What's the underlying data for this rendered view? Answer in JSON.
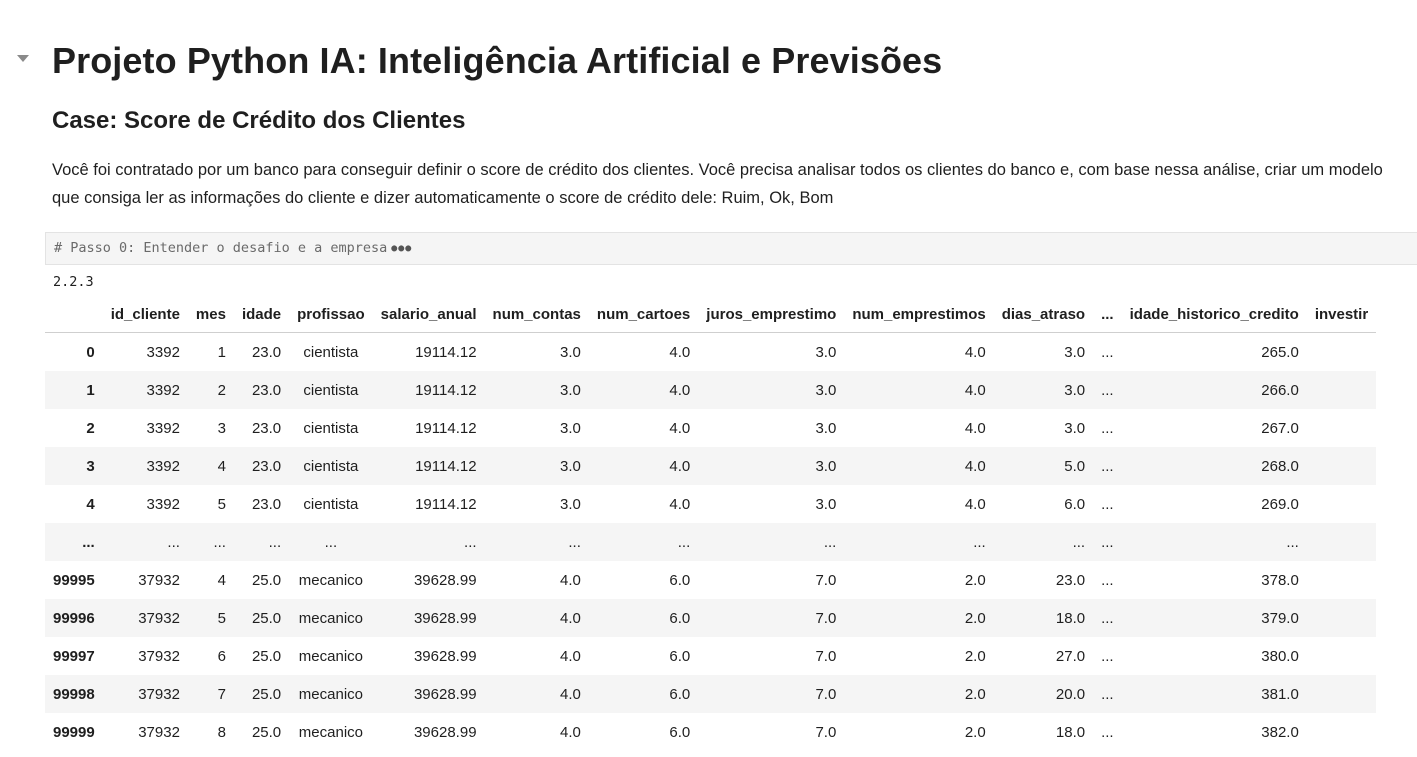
{
  "markdown": {
    "title": "Projeto Python IA: Inteligência Artificial e Previsões",
    "subtitle": "Case: Score de Crédito dos Clientes",
    "description": "Você foi contratado por um banco para conseguir definir o score de crédito dos clientes. Você precisa analisar todos os clientes do banco e, com base nessa análise, criar um modelo que consiga ler as informações do cliente e dizer automaticamente o score de crédito dele: Ruim, Ok, Bom"
  },
  "code_cell": {
    "text": "# Passo 0: Entender o desafio e a empresa",
    "ellipsis": "●●●"
  },
  "output": {
    "version": "2.2.3"
  },
  "table": {
    "columns": [
      "",
      "id_cliente",
      "mes",
      "idade",
      "profissao",
      "salario_anual",
      "num_contas",
      "num_cartoes",
      "juros_emprestimo",
      "num_emprestimos",
      "dias_atraso",
      "...",
      "idade_historico_credito",
      "investir"
    ],
    "rows": [
      [
        "0",
        "3392",
        "1",
        "23.0",
        "cientista",
        "19114.12",
        "3.0",
        "4.0",
        "3.0",
        "4.0",
        "3.0",
        "...",
        "265.0",
        ""
      ],
      [
        "1",
        "3392",
        "2",
        "23.0",
        "cientista",
        "19114.12",
        "3.0",
        "4.0",
        "3.0",
        "4.0",
        "3.0",
        "...",
        "266.0",
        ""
      ],
      [
        "2",
        "3392",
        "3",
        "23.0",
        "cientista",
        "19114.12",
        "3.0",
        "4.0",
        "3.0",
        "4.0",
        "3.0",
        "...",
        "267.0",
        ""
      ],
      [
        "3",
        "3392",
        "4",
        "23.0",
        "cientista",
        "19114.12",
        "3.0",
        "4.0",
        "3.0",
        "4.0",
        "5.0",
        "...",
        "268.0",
        ""
      ],
      [
        "4",
        "3392",
        "5",
        "23.0",
        "cientista",
        "19114.12",
        "3.0",
        "4.0",
        "3.0",
        "4.0",
        "6.0",
        "...",
        "269.0",
        ""
      ],
      [
        "...",
        "...",
        "...",
        "...",
        "...",
        "...",
        "...",
        "...",
        "...",
        "...",
        "...",
        "...",
        "...",
        ""
      ],
      [
        "99995",
        "37932",
        "4",
        "25.0",
        "mecanico",
        "39628.99",
        "4.0",
        "6.0",
        "7.0",
        "2.0",
        "23.0",
        "...",
        "378.0",
        ""
      ],
      [
        "99996",
        "37932",
        "5",
        "25.0",
        "mecanico",
        "39628.99",
        "4.0",
        "6.0",
        "7.0",
        "2.0",
        "18.0",
        "...",
        "379.0",
        ""
      ],
      [
        "99997",
        "37932",
        "6",
        "25.0",
        "mecanico",
        "39628.99",
        "4.0",
        "6.0",
        "7.0",
        "2.0",
        "27.0",
        "...",
        "380.0",
        ""
      ],
      [
        "99998",
        "37932",
        "7",
        "25.0",
        "mecanico",
        "39628.99",
        "4.0",
        "6.0",
        "7.0",
        "2.0",
        "20.0",
        "...",
        "381.0",
        ""
      ],
      [
        "99999",
        "37932",
        "8",
        "25.0",
        "mecanico",
        "39628.99",
        "4.0",
        "6.0",
        "7.0",
        "2.0",
        "18.0",
        "...",
        "382.0",
        ""
      ]
    ]
  }
}
